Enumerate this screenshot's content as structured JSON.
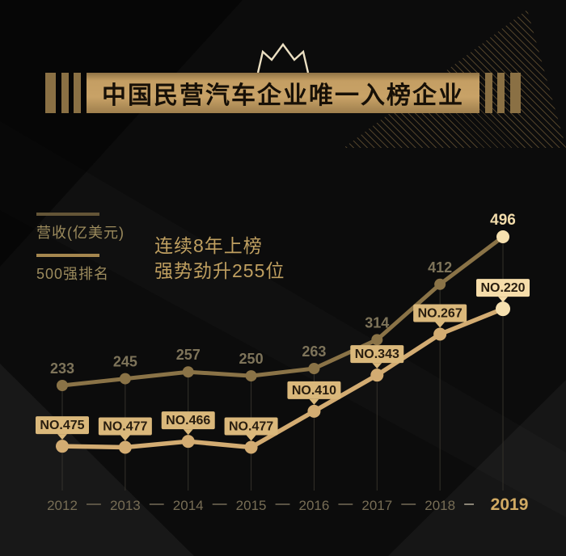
{
  "banner": {
    "title": "中国民营汽车企业唯一入榜企业",
    "crown_icon": "crown"
  },
  "legend": {
    "items": [
      {
        "label": "营收(亿美元)",
        "color": "#645537"
      },
      {
        "label": "500强排名",
        "color": "#a5874f"
      }
    ]
  },
  "promo": {
    "line1": "连续8年上榜",
    "line2": "强势劲升255位"
  },
  "chart_data": {
    "type": "line",
    "categories": [
      "2012",
      "2013",
      "2014",
      "2015",
      "2016",
      "2017",
      "2018",
      "2019"
    ],
    "series": [
      {
        "name": "营收(亿美元)",
        "values": [
          233,
          245,
          257,
          250,
          263,
          314,
          412,
          496
        ],
        "labels": [
          "233",
          "245",
          "257",
          "250",
          "263",
          "314",
          "412",
          "496"
        ],
        "color": "#8a7347"
      },
      {
        "name": "500强排名",
        "values": [
          475,
          477,
          466,
          477,
          410,
          343,
          267,
          220
        ],
        "labels": [
          "NO.475",
          "NO.477",
          "NO.466",
          "NO.477",
          "NO.410",
          "NO.343",
          "NO.267",
          "NO.220"
        ],
        "color": "#d3ac72"
      }
    ],
    "highlight_category": "2019",
    "legend_position": "top-left",
    "grid": "vertical-per-point",
    "style": {
      "grid_color": "#35322b",
      "axis_dash_color": "#5a5344",
      "axis_dash_highlight": "#8b8577",
      "badge_bg": "#dab87b",
      "badge_bg_highlight": "#f6ddaa",
      "highlight_fill": "#f6e0af"
    }
  }
}
